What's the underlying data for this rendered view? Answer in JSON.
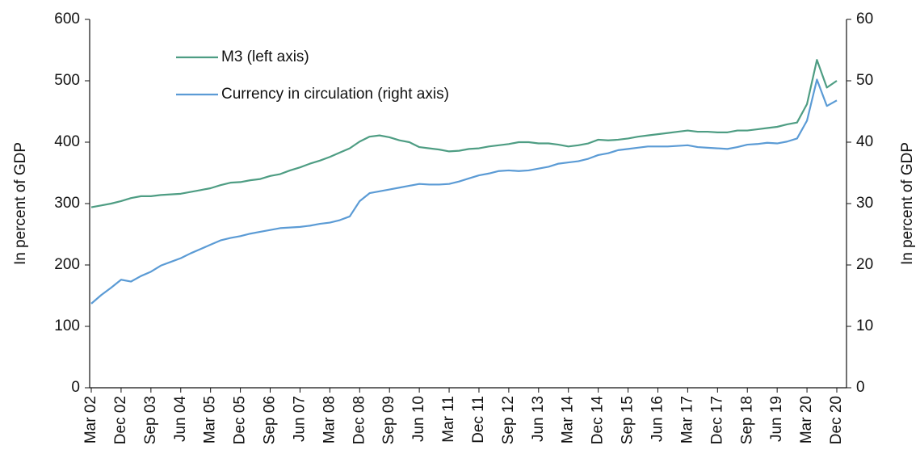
{
  "chart_data": {
    "type": "line",
    "y_label": "In percent of GDP",
    "y2_label": "In percent of GDP",
    "categories": [
      "Mar 02",
      null,
      null,
      "Dec 02",
      null,
      null,
      "Sep 03",
      null,
      null,
      "Jun 04",
      null,
      null,
      "Mar 05",
      null,
      null,
      "Dec 05",
      null,
      null,
      "Sep 06",
      null,
      null,
      "Jun 07",
      null,
      null,
      "Mar 08",
      null,
      null,
      "Dec 08",
      null,
      null,
      "Sep 09",
      null,
      null,
      "Jun 10",
      null,
      null,
      "Mar 11",
      null,
      null,
      "Dec 11",
      null,
      null,
      "Sep 12",
      null,
      null,
      "Jun 13",
      null,
      null,
      "Mar 14",
      null,
      null,
      "Dec 14",
      null,
      null,
      "Sep 15",
      null,
      null,
      "Jun 16",
      null,
      null,
      "Mar 17",
      null,
      null,
      "Dec 17",
      null,
      null,
      "Sep 18",
      null,
      null,
      "Jun 19",
      null,
      null,
      "Mar 20",
      null,
      null,
      "Dec 20"
    ],
    "series": [
      {
        "name": "M3 (left axis)",
        "color": "#4e9d83",
        "values": [
          294,
          297,
          300,
          304,
          309,
          312,
          312,
          314,
          315,
          316,
          319,
          322,
          325,
          330,
          334,
          335,
          338,
          340,
          345,
          348,
          354,
          359,
          365,
          370,
          376,
          383,
          390,
          401,
          409,
          411,
          408,
          403,
          400,
          392,
          390,
          388,
          385,
          386,
          389,
          390,
          393,
          395,
          397,
          400,
          400,
          398,
          398,
          396,
          393,
          395,
          398,
          404,
          403,
          404,
          406,
          409,
          411,
          413,
          415,
          417,
          419,
          417,
          417,
          416,
          416,
          419,
          419,
          421,
          423,
          425,
          429,
          432,
          462,
          534,
          489,
          500
        ]
      },
      {
        "name": "Currency in circulation (right axis)",
        "color": "#5b9bd5",
        "axis": "y2",
        "values": [
          13.7,
          15.1,
          16.3,
          17.6,
          17.3,
          18.2,
          18.9,
          19.9,
          20.5,
          21.1,
          21.9,
          22.6,
          23.3,
          24.0,
          24.4,
          24.7,
          25.1,
          25.4,
          25.7,
          26.0,
          26.1,
          26.2,
          26.4,
          26.7,
          26.9,
          27.3,
          27.9,
          30.4,
          31.7,
          32.0,
          32.3,
          32.6,
          32.9,
          33.2,
          33.1,
          33.1,
          33.2,
          33.6,
          34.1,
          34.6,
          34.9,
          35.3,
          35.4,
          35.3,
          35.4,
          35.7,
          36.0,
          36.5,
          36.7,
          36.9,
          37.3,
          37.9,
          38.2,
          38.7,
          38.9,
          39.1,
          39.3,
          39.3,
          39.3,
          39.4,
          39.5,
          39.2,
          39.1,
          39.0,
          38.9,
          39.2,
          39.6,
          39.7,
          39.9,
          39.8,
          40.1,
          40.6,
          43.5,
          50.2,
          45.9,
          46.8
        ]
      }
    ],
    "ylim": [
      0,
      600
    ],
    "yticks": [
      0,
      100,
      200,
      300,
      400,
      500,
      600
    ],
    "y2lim": [
      0,
      60
    ],
    "y2ticks": [
      0,
      10,
      20,
      30,
      40,
      50,
      60
    ],
    "grid": false,
    "legend": "upper left"
  }
}
